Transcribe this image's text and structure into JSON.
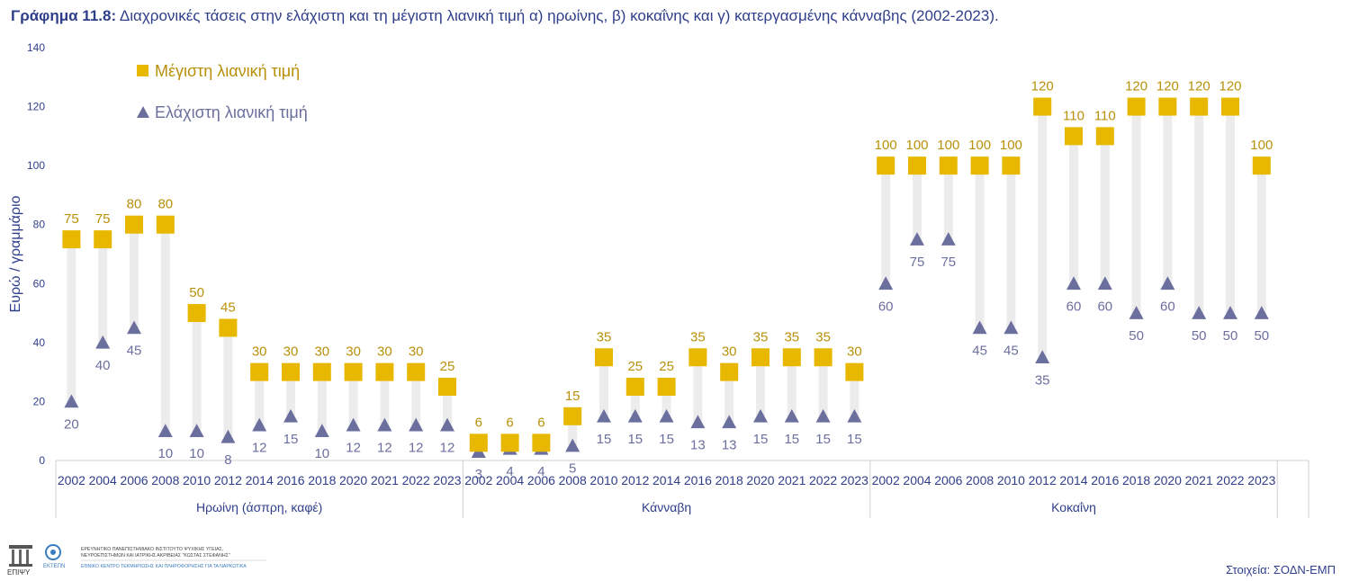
{
  "title": {
    "number": "Γράφημα 11.8:",
    "text": "Διαχρονικές τάσεις στην ελάχιστη και τη μέγιστη λιανική τιμή α) ηρωίνης, β) κοκαΐνης και γ) κατεργασμένης κάνναβης (2002-2023)."
  },
  "footer": {
    "logo1_text": "ΕΠΙΨΥ",
    "logo2_text": "ΕΚΤΕΠΝ",
    "institute_line1": "ΕΡΕΥΝΗΤΙΚΟ ΠΑΝΕΠΙΣΤΗΜΙΑΚΟ ΙΝΣΤΙΤΟΥΤΟ ΨΥΧΙΚΗΣ ΥΓΕΙΑΣ,",
    "institute_line2": "ΝΕΥΡΟΕΠΙΣΤΗΜΩΝ ΚΑΙ ΙΑΤΡΙΚΗΣ ΑΚΡΙΒΕΙΑΣ \"ΚΩΣΤΑΣ ΣΤΕΦΑΝΗΣ\"",
    "centre_line": "ΕΘΝΙΚΟ ΚΕΝΤΡΟ ΤΕΚΜΗΡΙΩΣΗΣ ΚΑΙ ΠΛΗΡΟΦΟΡΗΣΗΣ ΓΙΑ ΤΑ ΝΑΡΚΩΤΙΚΑ",
    "source": "Στοιχεία: ΣΟΔΝ-ΕΜΠ"
  },
  "colors": {
    "max": "#e8b800",
    "max_label": "#b8900a",
    "min": "#6b6f9e",
    "min_label": "#6b6f9e",
    "bar": "#ececec",
    "axis_text": "#2f3e8a"
  },
  "chart_data": {
    "type": "scatter",
    "ylabel": "Ευρώ / γραμμάριο",
    "ylim": [
      0,
      140
    ],
    "yticks": [
      0,
      20,
      40,
      60,
      80,
      100,
      120,
      140
    ],
    "grid": false,
    "legend_position": "top-left",
    "groups": [
      {
        "name": "Ηρωίνη (άσπρη, καφέ)",
        "categories": [
          "2002",
          "2004",
          "2006",
          "2008",
          "2010",
          "2012",
          "2014",
          "2016",
          "2018",
          "2020",
          "2021",
          "2022",
          "2023"
        ],
        "max": [
          75,
          75,
          80,
          80,
          50,
          45,
          30,
          30,
          30,
          30,
          30,
          30,
          25
        ],
        "min": [
          20,
          40,
          45,
          10,
          10,
          8,
          12,
          15,
          10,
          12,
          12,
          12,
          12
        ]
      },
      {
        "name": "Κάνναβη",
        "categories": [
          "2002",
          "2004",
          "2006",
          "2008",
          "2010",
          "2012",
          "2014",
          "2016",
          "2018",
          "2020",
          "2021",
          "2022",
          "2023"
        ],
        "max": [
          6,
          6,
          6,
          15,
          35,
          25,
          25,
          35,
          30,
          35,
          35,
          35,
          30
        ],
        "min": [
          3,
          4,
          4,
          5,
          15,
          15,
          15,
          13,
          13,
          15,
          15,
          15,
          15
        ]
      },
      {
        "name": "Κοκαΐνη",
        "categories": [
          "2002",
          "2004",
          "2006",
          "2008",
          "2010",
          "2012",
          "2014",
          "2016",
          "2018",
          "2020",
          "2021",
          "2022",
          "2023"
        ],
        "max": [
          100,
          100,
          100,
          100,
          100,
          120,
          110,
          110,
          120,
          120,
          120,
          120,
          100
        ],
        "min": [
          60,
          75,
          75,
          45,
          45,
          35,
          60,
          60,
          50,
          60,
          50,
          50,
          50
        ]
      }
    ],
    "series": [
      {
        "name": "Μέγιστη λιανική τιμή",
        "key": "max"
      },
      {
        "name": "Ελάχιστη λιανική τιμή",
        "key": "min"
      }
    ]
  }
}
